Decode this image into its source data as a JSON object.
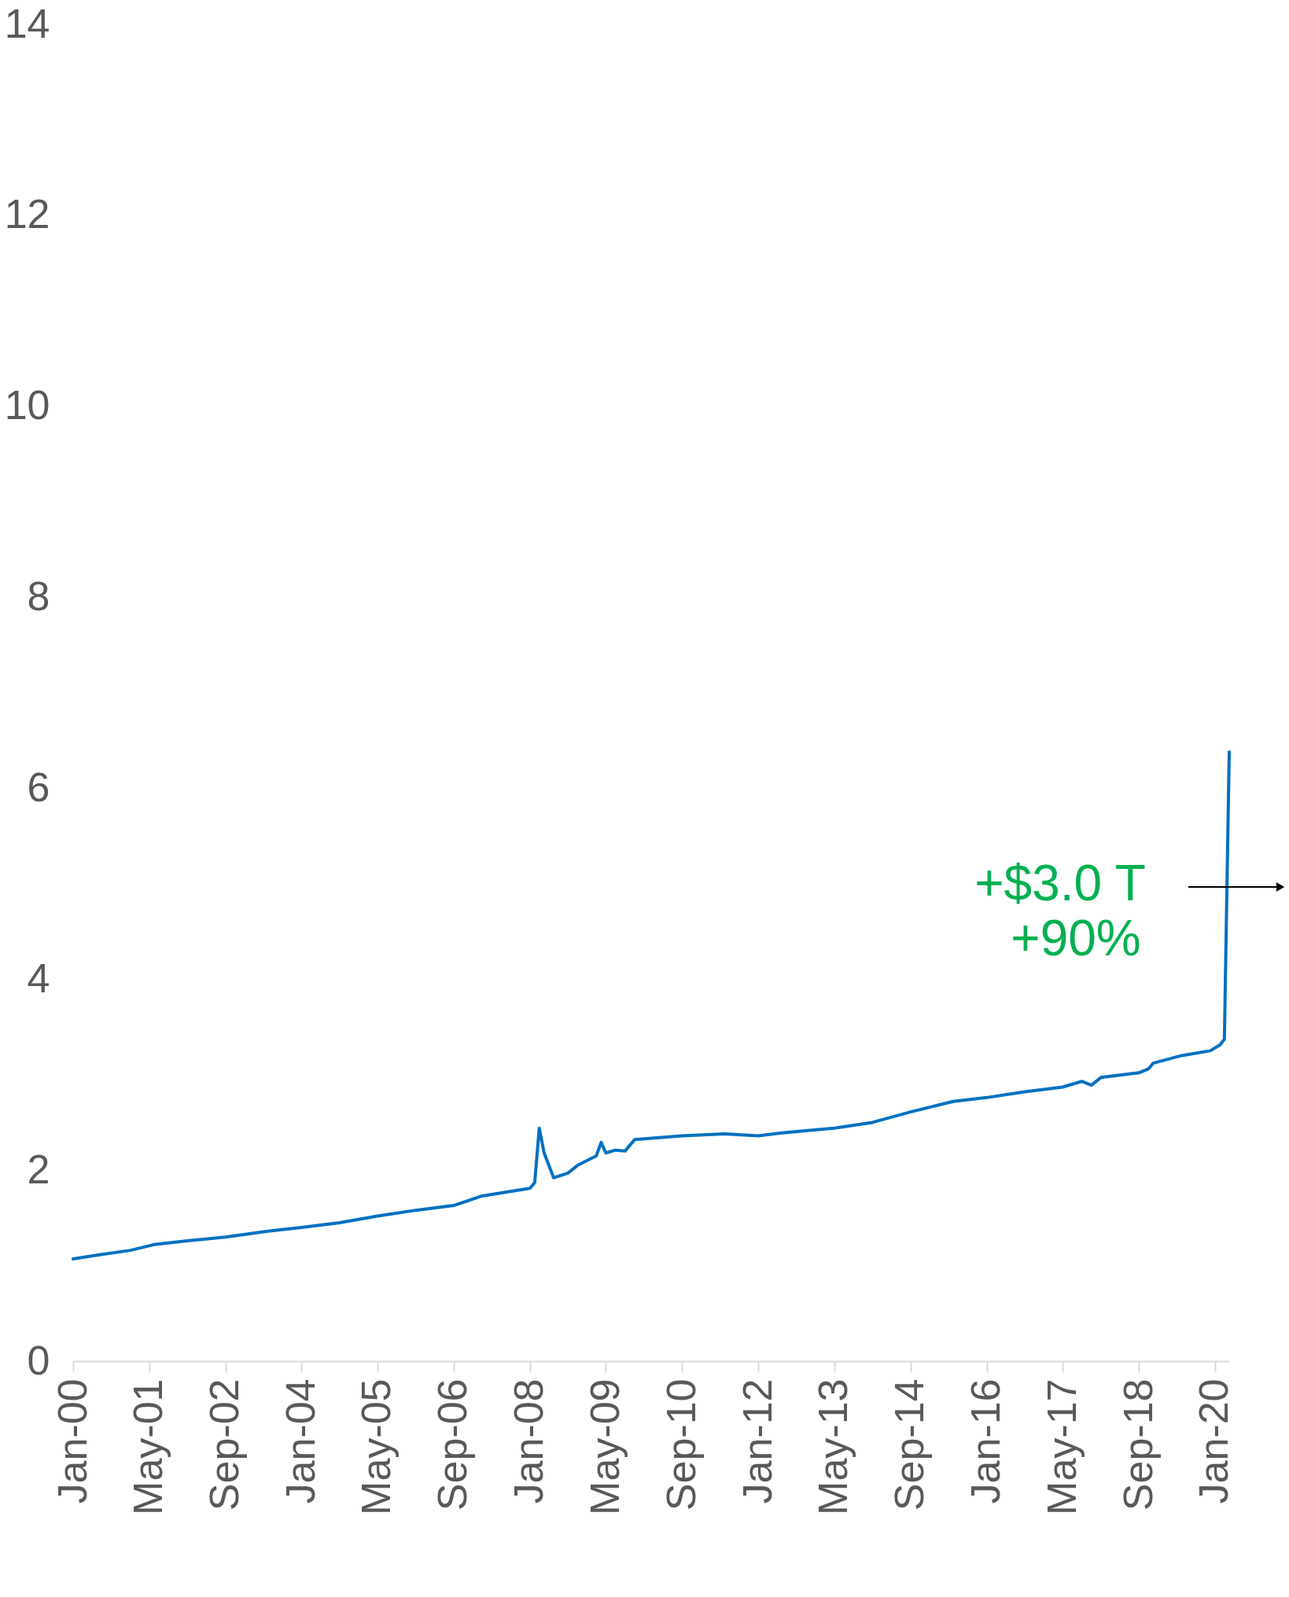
{
  "chart_data": {
    "type": "line",
    "x": [
      "2000-01",
      "2000-06",
      "2001-01",
      "2001-06",
      "2002-01",
      "2002-09",
      "2003-06",
      "2004-01",
      "2004-09",
      "2005-05",
      "2006-01",
      "2006-09",
      "2007-03",
      "2008-01",
      "2008-02",
      "2008-03",
      "2008-04",
      "2008-06",
      "2008-09",
      "2008-11",
      "2009-03",
      "2009-04",
      "2009-05",
      "2009-07",
      "2009-09",
      "2009-11",
      "2010-09",
      "2011-06",
      "2012-01",
      "2012-06",
      "2013-05",
      "2014-01",
      "2014-09",
      "2015-06",
      "2016-01",
      "2016-09",
      "2017-05",
      "2017-09",
      "2017-11",
      "2018-01",
      "2018-09",
      "2018-11",
      "2018-12",
      "2019-06",
      "2019-12",
      "2020-02",
      "2020-03",
      "2020-04"
    ],
    "series": [
      {
        "color": "#0070c0",
        "values": [
          1.07,
          1.11,
          1.16,
          1.22,
          1.26,
          1.3,
          1.36,
          1.4,
          1.45,
          1.52,
          1.58,
          1.63,
          1.73,
          1.81,
          1.87,
          2.44,
          2.18,
          1.92,
          1.97,
          2.05,
          2.15,
          2.29,
          2.18,
          2.21,
          2.2,
          2.32,
          2.36,
          2.38,
          2.36,
          2.39,
          2.44,
          2.5,
          2.61,
          2.72,
          2.76,
          2.82,
          2.87,
          2.93,
          2.89,
          2.97,
          3.02,
          3.06,
          3.12,
          3.2,
          3.25,
          3.31,
          3.37,
          6.38
        ]
      }
    ],
    "xlim": [
      "2000-01",
      "2020-04"
    ],
    "xticks": [
      {
        "value": "2000-01",
        "label": "Jan-00"
      },
      {
        "value": "2001-05",
        "label": "May-01"
      },
      {
        "value": "2002-09",
        "label": "Sep-02"
      },
      {
        "value": "2004-01",
        "label": "Jan-04"
      },
      {
        "value": "2005-05",
        "label": "May-05"
      },
      {
        "value": "2006-09",
        "label": "Sep-06"
      },
      {
        "value": "2008-01",
        "label": "Jan-08"
      },
      {
        "value": "2009-05",
        "label": "May-09"
      },
      {
        "value": "2010-09",
        "label": "Sep-10"
      },
      {
        "value": "2012-01",
        "label": "Jan-12"
      },
      {
        "value": "2013-05",
        "label": "May-13"
      },
      {
        "value": "2014-09",
        "label": "Sep-14"
      },
      {
        "value": "2016-01",
        "label": "Jan-16"
      },
      {
        "value": "2017-05",
        "label": "May-17"
      },
      {
        "value": "2018-09",
        "label": "Sep-18"
      },
      {
        "value": "2020-01",
        "label": "Jan-20"
      }
    ],
    "ylim": [
      0,
      14
    ],
    "yticks": [
      0,
      2,
      4,
      6,
      8,
      10,
      12,
      14
    ],
    "annotations": [
      "+$3.0 T",
      "+90%"
    ],
    "grid": false,
    "legend": false,
    "marker": "none",
    "line_style": "solid"
  }
}
